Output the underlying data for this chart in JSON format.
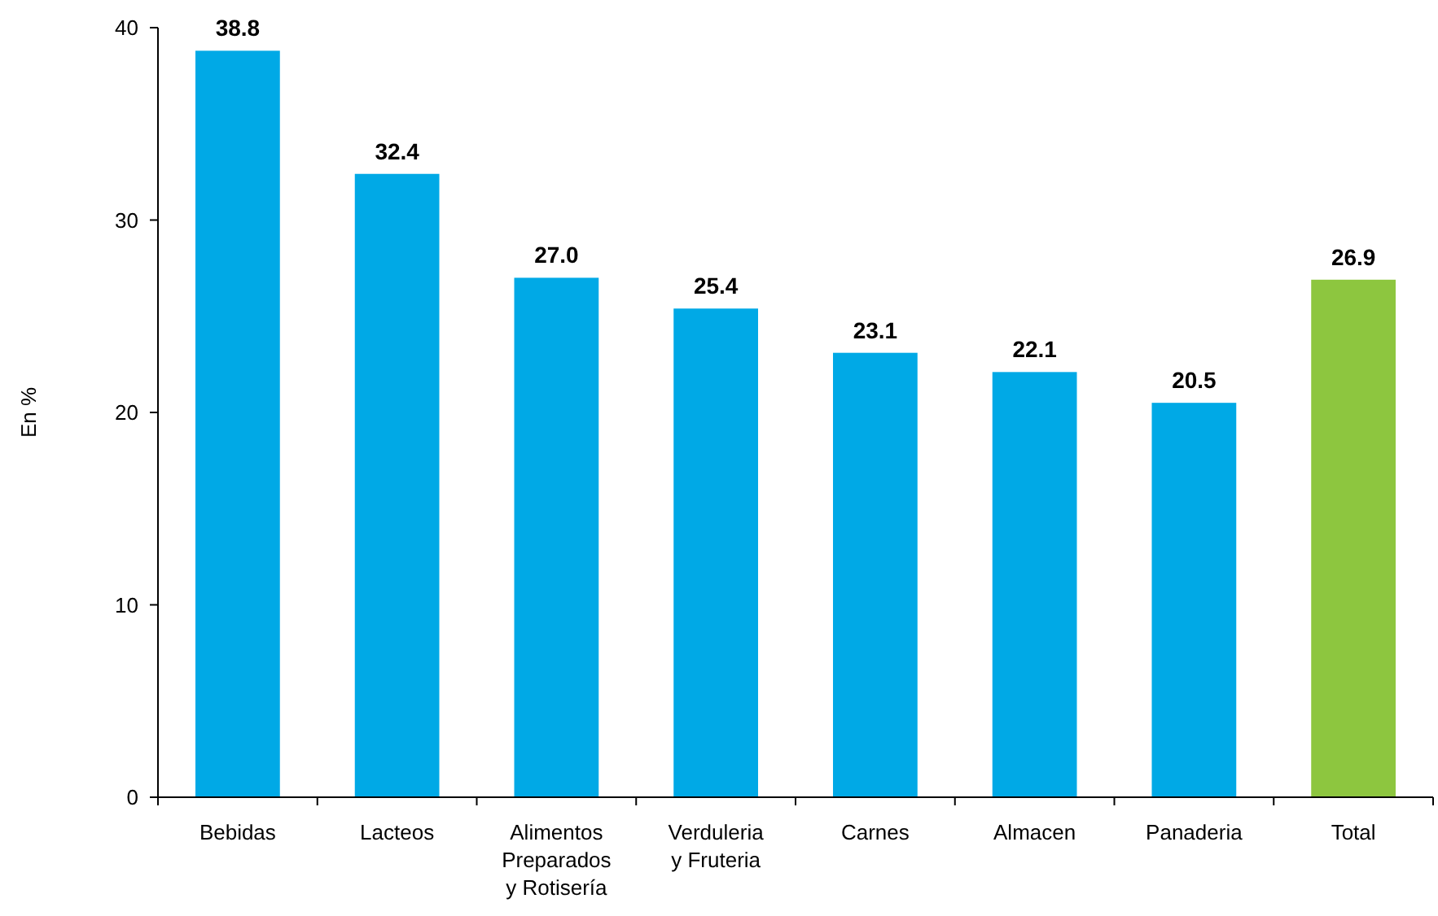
{
  "chart_data": {
    "type": "bar",
    "ylabel": "En %",
    "categories": [
      "Bebidas",
      "Lacteos",
      "Alimentos\nPreparados\ny Rotisería",
      "Verduleria\ny Fruteria",
      "Carnes",
      "Almacen",
      "Panaderia",
      "Total"
    ],
    "values": [
      38.8,
      32.4,
      27.0,
      25.4,
      23.1,
      22.1,
      20.5,
      26.9
    ],
    "value_labels": [
      "38.8",
      "32.4",
      "27.0",
      "25.4",
      "23.1",
      "22.1",
      "20.5",
      "26.9"
    ],
    "colors": [
      "#00a9e6",
      "#00a9e6",
      "#00a9e6",
      "#00a9e6",
      "#00a9e6",
      "#00a9e6",
      "#00a9e6",
      "#8dc63f"
    ],
    "ylim": [
      0,
      40
    ],
    "yticks": [
      0,
      10,
      20,
      30,
      40
    ],
    "grid": false
  }
}
